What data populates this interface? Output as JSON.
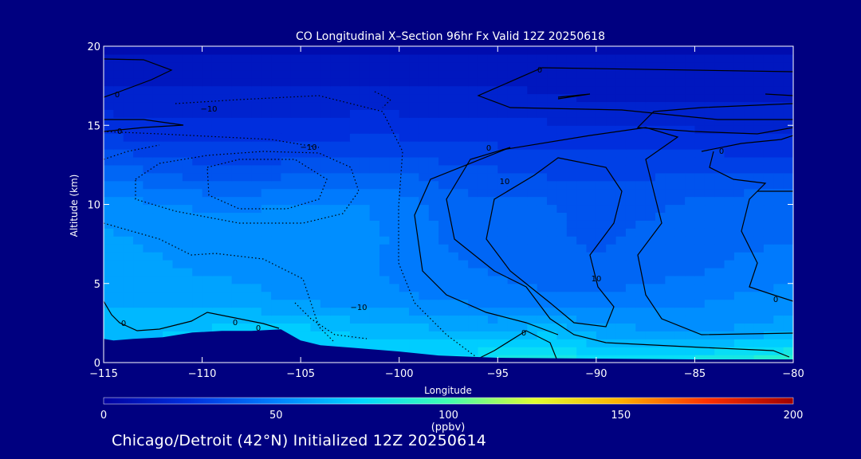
{
  "chart_data": {
    "type": "heatmap",
    "title": "CO Longitudinal X–Section 96hr  Fx Valid 12Z 20250618",
    "xlabel": "Longitude",
    "ylabel": "Altitude (km)",
    "xlim": [
      -115,
      -80
    ],
    "ylim": [
      0,
      20
    ],
    "x_ticks": [
      "−115",
      "−110",
      "−105",
      "−100",
      "−95",
      "−90",
      "−85",
      "−80"
    ],
    "y_ticks": [
      "0",
      "5",
      "10",
      "15",
      "20"
    ],
    "colorbar": {
      "ticks": [
        "0",
        "50",
        "100",
        "150",
        "200"
      ],
      "unit": "(ppbv)",
      "range": [
        0,
        200
      ],
      "colors": [
        "#0000a0",
        "#0030e0",
        "#0080ff",
        "#00d8ff",
        "#40ffb0",
        "#e0ff30",
        "#ffb000",
        "#ff3000",
        "#a00000"
      ]
    },
    "x": [
      -115,
      -112.5,
      -110,
      -107.5,
      -105,
      -102.5,
      -100,
      -97.5,
      -95,
      -92.5,
      -90,
      -87.5,
      -85,
      -82.5,
      -80
    ],
    "y": [
      0,
      2,
      4,
      6,
      8,
      10,
      12,
      14,
      16,
      18,
      20
    ],
    "values": [
      [
        70,
        72,
        78,
        80,
        78,
        76,
        78,
        80,
        84,
        88,
        80,
        82,
        84,
        90,
        95
      ],
      [
        66,
        68,
        70,
        72,
        72,
        68,
        66,
        64,
        62,
        68,
        60,
        58,
        56,
        58,
        60
      ],
      [
        62,
        62,
        60,
        58,
        56,
        54,
        52,
        50,
        48,
        46,
        46,
        48,
        50,
        52,
        54
      ],
      [
        60,
        58,
        56,
        56,
        55,
        52,
        50,
        46,
        44,
        42,
        40,
        42,
        44,
        46,
        48
      ],
      [
        58,
        56,
        55,
        55,
        54,
        54,
        50,
        44,
        42,
        40,
        38,
        40,
        42,
        44,
        44
      ],
      [
        55,
        52,
        50,
        50,
        52,
        52,
        48,
        42,
        40,
        40,
        36,
        38,
        40,
        42,
        42
      ],
      [
        44,
        40,
        36,
        36,
        38,
        40,
        40,
        36,
        34,
        32,
        32,
        32,
        34,
        34,
        34
      ],
      [
        30,
        26,
        26,
        26,
        26,
        28,
        28,
        26,
        26,
        26,
        26,
        24,
        24,
        22,
        22
      ],
      [
        20,
        18,
        20,
        20,
        20,
        20,
        20,
        20,
        20,
        18,
        16,
        16,
        16,
        16,
        16
      ],
      [
        14,
        14,
        14,
        14,
        14,
        14,
        14,
        14,
        14,
        12,
        12,
        12,
        12,
        12,
        12
      ],
      [
        8,
        8,
        8,
        8,
        8,
        8,
        8,
        8,
        8,
        8,
        8,
        8,
        8,
        8,
        8
      ]
    ],
    "contour_labels": [
      "0",
      "0",
      "0",
      "0",
      "0",
      "0",
      "0",
      "0",
      "0",
      "0",
      "−10",
      "−10",
      "−10",
      "10",
      "10"
    ],
    "terrain": {
      "x": [
        -115,
        -114.5,
        -113.5,
        -112,
        -110.5,
        -109,
        -107.5,
        -106,
        -105,
        -104,
        -102,
        -100,
        -98,
        -95,
        -90,
        -85,
        -80
      ],
      "y": [
        1.5,
        1.4,
        1.5,
        1.6,
        1.9,
        2.0,
        2.0,
        2.1,
        1.4,
        1.1,
        0.9,
        0.7,
        0.45,
        0.3,
        0.25,
        0.2,
        0.2
      ]
    }
  },
  "footer": "Chicago/Detroit (42°N) Initialized 12Z 20250614"
}
